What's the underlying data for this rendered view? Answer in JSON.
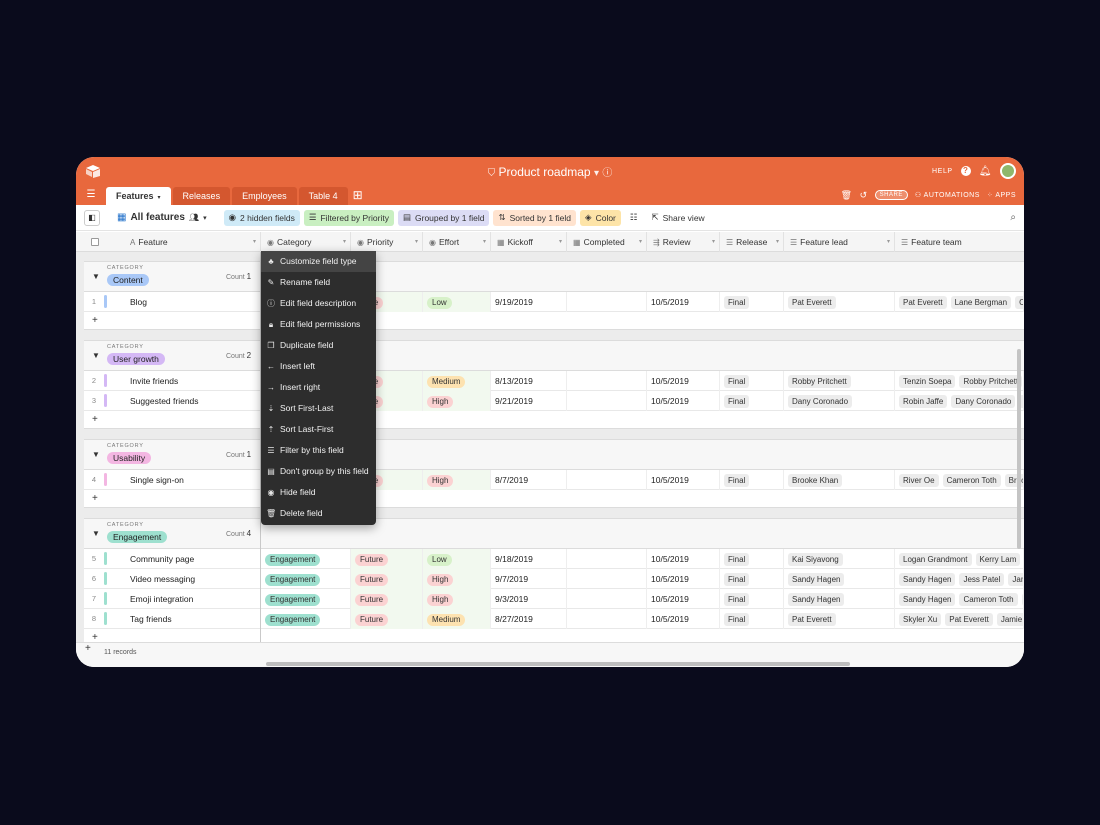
{
  "app": {
    "title": "Product roadmap",
    "help": "HELP",
    "share": "SHARE",
    "automations": "AUTOMATIONS",
    "apps": "APPS"
  },
  "tabs": [
    "Features",
    "Releases",
    "Employees",
    "Table 4"
  ],
  "view": {
    "name": "All features",
    "hidden_fields": "2 hidden fields",
    "filtered": "Filtered by Priority",
    "grouped": "Grouped by 1 field",
    "sorted": "Sorted by 1 field",
    "color": "Color",
    "share_view": "Share view"
  },
  "columns": [
    "Feature",
    "Category",
    "Priority",
    "Effort",
    "Kickoff",
    "Completed",
    "Review",
    "Release",
    "Feature lead",
    "Feature team"
  ],
  "group_label": "CATEGORY",
  "count_label": "Count",
  "groups": [
    {
      "name": "Content",
      "count": "1",
      "rows": [
        {
          "n": "1",
          "feature": "Blog",
          "priority": "uture",
          "effort": "Low",
          "kickoff": "9/19/2019",
          "review": "10/5/2019",
          "release": "Final",
          "lead": "Pat Everett",
          "team": [
            "Pat Everett",
            "Lane Bergman",
            "Casey"
          ]
        }
      ]
    },
    {
      "name": "User growth",
      "count": "2",
      "rows": [
        {
          "n": "2",
          "feature": "Invite friends",
          "priority": "uture",
          "effort": "Medium",
          "kickoff": "8/13/2019",
          "review": "10/5/2019",
          "release": "Final",
          "lead": "Robby Pritchett",
          "team": [
            "Tenzin Soepa",
            "Robby Pritchett",
            "C"
          ]
        },
        {
          "n": "3",
          "feature": "Suggested friends",
          "priority": "uture",
          "effort": "High",
          "kickoff": "9/21/2019",
          "review": "10/5/2019",
          "release": "Final",
          "lead": "Dany Coronado",
          "team": [
            "Robin Jaffe",
            "Dany Coronado",
            "Ca"
          ]
        }
      ]
    },
    {
      "name": "Usability",
      "count": "1",
      "rows": [
        {
          "n": "4",
          "feature": "Single sign-on",
          "priority": "uture",
          "effort": "High",
          "kickoff": "8/7/2019",
          "review": "10/5/2019",
          "release": "Final",
          "lead": "Brooke Khan",
          "team": [
            "River Oe",
            "Cameron Toth",
            "Brooke"
          ]
        }
      ]
    },
    {
      "name": "Engagement",
      "count": "4",
      "rows": [
        {
          "n": "5",
          "feature": "Community page",
          "category": "Engagement",
          "priority": "Future",
          "effort": "Low",
          "kickoff": "9/18/2019",
          "review": "10/5/2019",
          "release": "Final",
          "lead": "Kai Siyavong",
          "team": [
            "Logan Grandmont",
            "Kerry Lam",
            "K"
          ]
        },
        {
          "n": "6",
          "feature": "Video messaging",
          "category": "Engagement",
          "priority": "Future",
          "effort": "High",
          "kickoff": "9/7/2019",
          "review": "10/5/2019",
          "release": "Final",
          "lead": "Sandy Hagen",
          "team": [
            "Sandy Hagen",
            "Jess Patel",
            "Jamie"
          ]
        },
        {
          "n": "7",
          "feature": "Emoji integration",
          "category": "Engagement",
          "priority": "Future",
          "effort": "High",
          "kickoff": "9/3/2019",
          "review": "10/5/2019",
          "release": "Final",
          "lead": "Sandy Hagen",
          "team": [
            "Sandy Hagen",
            "Cameron Toth",
            "Ba"
          ]
        },
        {
          "n": "8",
          "feature": "Tag friends",
          "category": "Engagement",
          "priority": "Future",
          "effort": "Medium",
          "kickoff": "8/27/2019",
          "review": "10/5/2019",
          "release": "Final",
          "lead": "Pat Everett",
          "team": [
            "Skyler Xu",
            "Pat Everett",
            "Jamie Zi"
          ]
        }
      ]
    }
  ],
  "footer": {
    "records": "11 records"
  },
  "context_menu": [
    {
      "label": "Customize field type",
      "icon": "shapes-icon"
    },
    {
      "label": "Rename field",
      "icon": "pencil-icon"
    },
    {
      "label": "Edit field description",
      "icon": "info-icon"
    },
    {
      "label": "Edit field permissions",
      "icon": "lock-icon"
    },
    {
      "label": "Duplicate field",
      "icon": "duplicate-icon"
    },
    {
      "label": "Insert left",
      "icon": "arrow-left-icon"
    },
    {
      "label": "Insert right",
      "icon": "arrow-right-icon"
    },
    {
      "label": "Sort First-Last",
      "icon": "sort-asc-icon"
    },
    {
      "label": "Sort Last-First",
      "icon": "sort-desc-icon"
    },
    {
      "label": "Filter by this field",
      "icon": "filter-icon"
    },
    {
      "label": "Don't group by this field",
      "icon": "ungroup-icon"
    },
    {
      "label": "Hide field",
      "icon": "eye-off-icon"
    },
    {
      "label": "Delete field",
      "icon": "trash-icon"
    }
  ],
  "colors": {
    "topbar": "#e8683d",
    "content": "#a9c8f7",
    "user_growth": "#d4b8f5",
    "usability": "#f3b6e2",
    "engagement": "#9ee0cf",
    "low": "#d7f1c9",
    "medium": "#fde2b0",
    "high": "#fbd2d2",
    "future": "#fbd2d2"
  }
}
